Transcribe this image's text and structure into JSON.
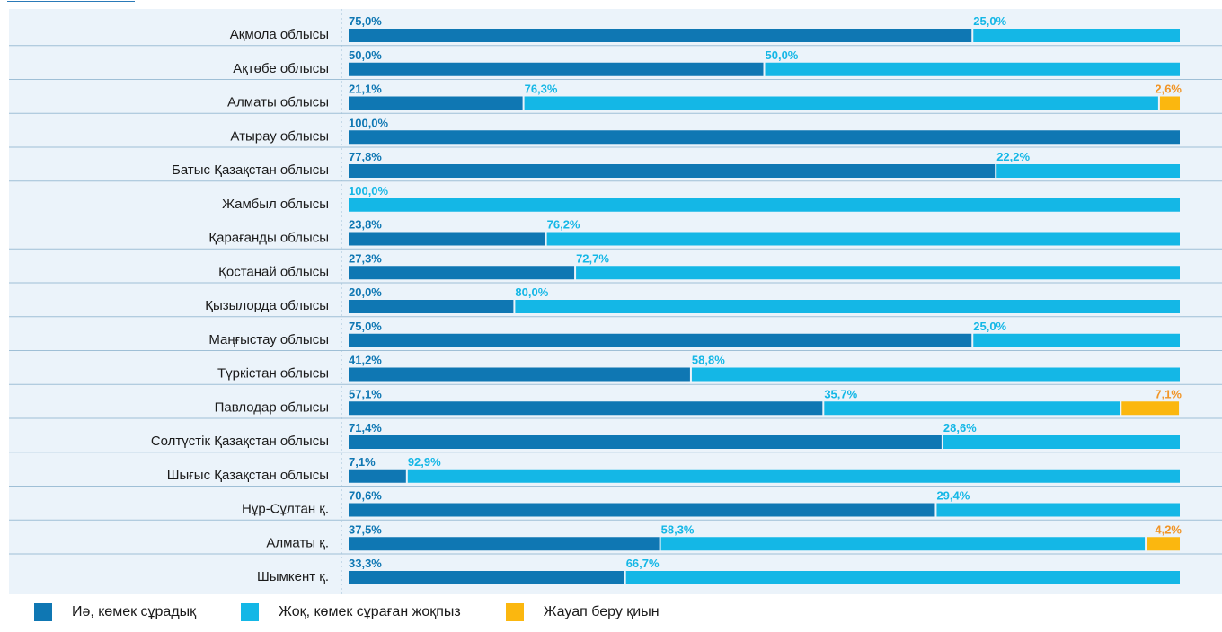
{
  "colors": {
    "yes": "#0f77b3",
    "no": "#14b7e6",
    "hard": "#fbb70f",
    "hard_text": "#f19526",
    "gridline": "#9fbfd6",
    "background": "#ebf3fa"
  },
  "chart_data": {
    "type": "bar",
    "orientation": "horizontal",
    "stacked": true,
    "percent": true,
    "xlim": [
      0,
      100
    ],
    "categories": [
      "Ақмола облысы",
      "Ақтөбе облысы",
      "Алматы облысы",
      "Атырау облысы",
      "Батыс Қазақстан облысы",
      "Жамбыл облысы",
      "Қарағанды облысы",
      "Қостанай облысы",
      "Қызылорда облысы",
      "Маңғыстау облысы",
      "Түркістан облысы",
      "Павлодар облысы",
      "Солтүстік Қазақстан облысы",
      "Шығыс Қазақстан облысы",
      "Нұр-Сұлтан қ.",
      "Алматы қ.",
      "Шымкент қ."
    ],
    "series": [
      {
        "name": "Иә, көмек сұрадық",
        "color": "#0f77b3",
        "values": [
          75.0,
          50.0,
          21.1,
          100.0,
          77.8,
          0,
          23.8,
          27.3,
          20.0,
          75.0,
          41.2,
          57.1,
          71.4,
          7.1,
          70.6,
          37.5,
          33.3
        ]
      },
      {
        "name": "Жоқ, көмек сұраған жоқпыз",
        "color": "#14b7e6",
        "values": [
          25.0,
          50.0,
          76.3,
          0,
          22.2,
          100.0,
          76.2,
          72.7,
          80.0,
          25.0,
          58.8,
          35.7,
          28.6,
          92.9,
          29.4,
          58.3,
          66.7
        ]
      },
      {
        "name": "Жауап беру қиын",
        "color": "#fbb70f",
        "values": [
          0,
          0,
          2.6,
          0,
          0,
          0,
          0,
          0,
          0,
          0,
          0,
          7.1,
          0,
          0,
          0,
          4.2,
          0
        ]
      }
    ],
    "data_labels": [
      [
        "75,0%",
        "25,0%",
        ""
      ],
      [
        "50,0%",
        "50,0%",
        ""
      ],
      [
        "21,1%",
        "76,3%",
        "2,6%"
      ],
      [
        "100,0%",
        "",
        ""
      ],
      [
        "77,8%",
        "22,2%",
        ""
      ],
      [
        "",
        "100,0%",
        ""
      ],
      [
        "23,8%",
        "76,2%",
        ""
      ],
      [
        "27,3%",
        "72,7%",
        ""
      ],
      [
        "20,0%",
        "80,0%",
        ""
      ],
      [
        "75,0%",
        "25,0%",
        ""
      ],
      [
        "41,2%",
        "58,8%",
        ""
      ],
      [
        "57,1%",
        "35,7%",
        "7,1%"
      ],
      [
        "71,4%",
        "28,6%",
        ""
      ],
      [
        "7,1%",
        "92,9%",
        ""
      ],
      [
        "70,6%",
        "29,4%",
        ""
      ],
      [
        "37,5%",
        "58,3%",
        "4,2%"
      ],
      [
        "33,3%",
        "66,7%",
        ""
      ]
    ],
    "legend_position": "bottom-left",
    "grid": false
  },
  "legend": {
    "yes_label": "Иә, көмек сұрадық",
    "no_label": "Жоқ, көмек сұраған жоқпыз",
    "hard_label": "Жауап беру қиын"
  }
}
